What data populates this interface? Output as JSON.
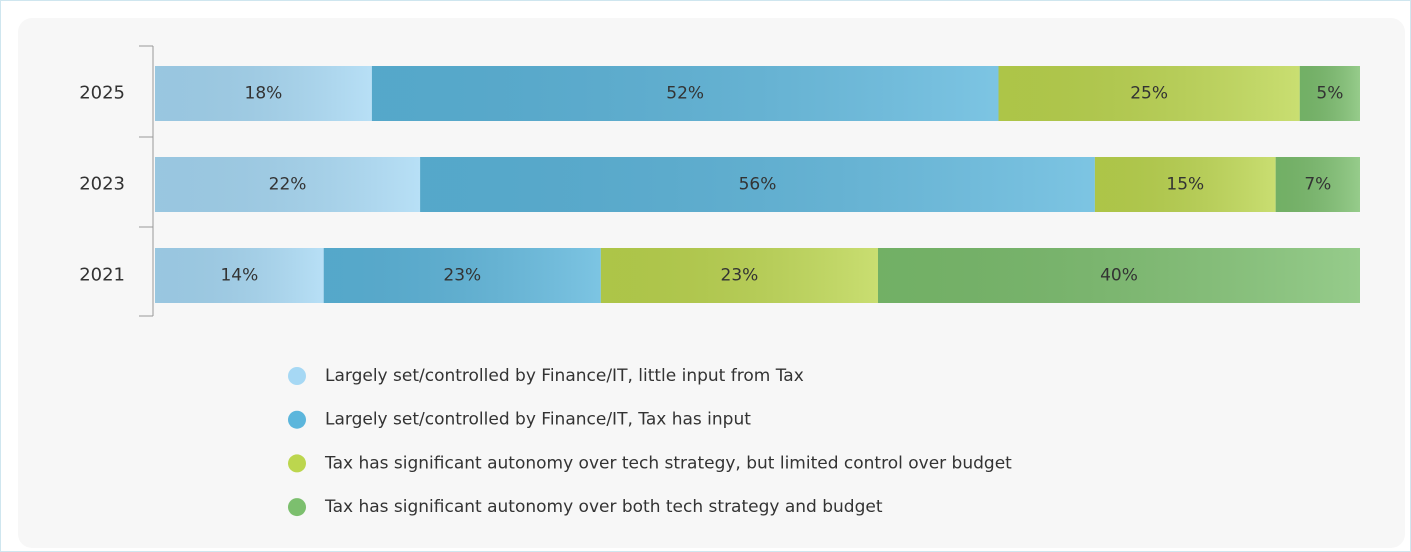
{
  "chart_data": {
    "type": "stacked-bar-horizontal",
    "categories": [
      "2025",
      "2023",
      "2021"
    ],
    "xlim": [
      0,
      100
    ],
    "series": [
      {
        "name": "Largely set/controlled by Finance/IT, little input from Tax",
        "color": "#a6d8f4",
        "values": [
          18,
          22,
          14
        ],
        "value_labels": [
          "18%",
          "22%",
          "14%"
        ]
      },
      {
        "name": "Largely set/controlled by Finance/IT, Tax has input",
        "color": "#5cb6dc",
        "values": [
          52,
          56,
          23
        ],
        "value_labels": [
          "52%",
          "56%",
          "23%"
        ]
      },
      {
        "name": "Tax has significant autonomy over tech strategy, but limited control over budget",
        "color": "#bcd64e",
        "values": [
          25,
          15,
          23
        ],
        "value_labels": [
          "25%",
          "15%",
          "23%"
        ]
      },
      {
        "name": "Tax has significant autonomy over both tech strategy and budget",
        "color": "#7cbf6e",
        "values": [
          5,
          7,
          40
        ],
        "value_labels": [
          "5%",
          "7%",
          "40%"
        ]
      }
    ]
  }
}
